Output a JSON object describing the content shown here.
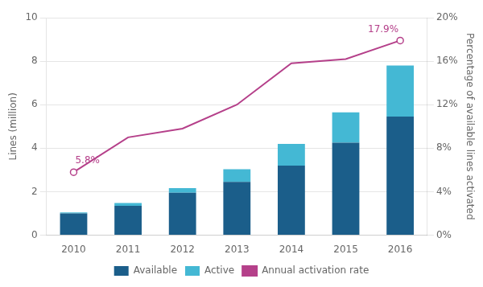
{
  "chart_data": {
    "type": "bar",
    "stacked": true,
    "categories": [
      "2010",
      "2011",
      "2012",
      "2013",
      "2014",
      "2015",
      "2016"
    ],
    "series": [
      {
        "name": "Available",
        "color": "#1b5e8a",
        "values": [
          1.0,
          1.35,
          1.95,
          2.45,
          3.2,
          4.25,
          5.45
        ]
      },
      {
        "name": "Active",
        "color": "#44b8d4",
        "values": [
          0.05,
          0.13,
          0.22,
          0.58,
          1.0,
          1.4,
          2.35
        ]
      },
      {
        "name": "Annual activation rate",
        "type": "line",
        "axis": "y2",
        "color": "#b5408a",
        "values": [
          5.8,
          9.0,
          9.8,
          12.0,
          15.8,
          16.2,
          17.9
        ]
      }
    ],
    "ylabel": "Lines (million)",
    "y2label": "Percentage of available lines activated",
    "ylim": [
      0,
      10
    ],
    "yticks": [
      0,
      2,
      4,
      6,
      8,
      10
    ],
    "y2lim": [
      0,
      20
    ],
    "y2ticks": [
      {
        "value": 0,
        "label": "0%"
      },
      {
        "value": 4,
        "label": "4%"
      },
      {
        "value": 8,
        "label": "8%"
      },
      {
        "value": 12,
        "label": "12%"
      },
      {
        "value": 16,
        "label": "16%"
      },
      {
        "value": 20,
        "label": "20%"
      }
    ],
    "grid": true,
    "legend": "bottom",
    "annotations": [
      {
        "text": "5.8%",
        "x": "2010",
        "y": 5.8,
        "axis": "y2",
        "color": "#b5408a"
      },
      {
        "text": "17.9%",
        "x": "2016",
        "y": 17.9,
        "axis": "y2",
        "color": "#b5408a"
      }
    ]
  }
}
